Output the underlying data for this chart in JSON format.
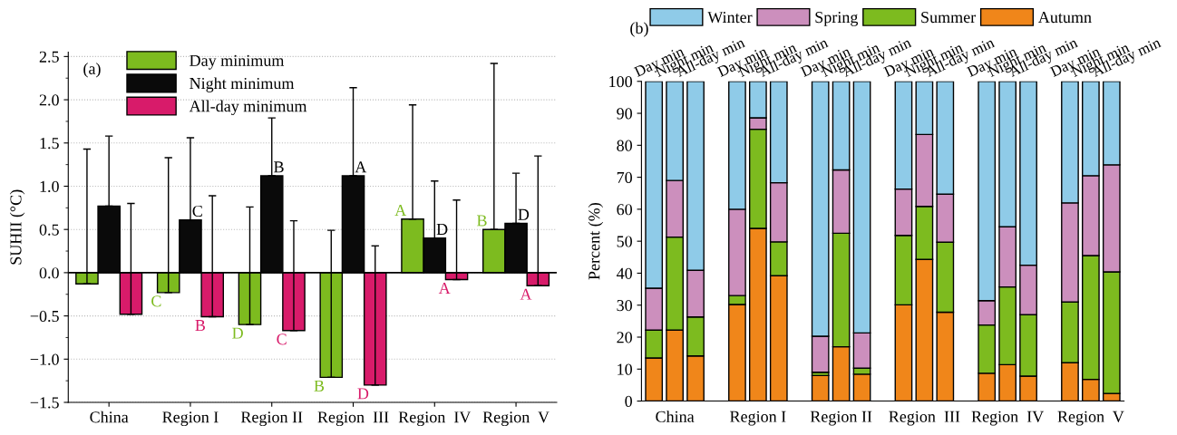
{
  "chart_data": [
    {
      "type": "bar",
      "ylabel": "SUHII (°C)",
      "categories": [
        "China",
        "Region I",
        "Region II",
        "Region  III",
        "Region  IV",
        "Region  V"
      ],
      "ylim": [
        -1.5,
        2.55
      ],
      "yticks": [
        {
          "value": -1.5,
          "label": "−1.5"
        },
        {
          "value": -1.0,
          "label": "−1.0"
        },
        {
          "value": -0.5,
          "label": "−0.5"
        },
        {
          "value": 0.0,
          "label": "0.0"
        },
        {
          "value": 0.5,
          "label": "0.5"
        },
        {
          "value": 1.0,
          "label": "1.0"
        },
        {
          "value": 1.5,
          "label": "1.5"
        },
        {
          "value": 2.0,
          "label": "2.0"
        },
        {
          "value": 2.5,
          "label": "2.5"
        }
      ],
      "grid": "y",
      "legend": "top left",
      "annotations": [
        "(a)"
      ],
      "series": [
        {
          "name": "Day minimum",
          "color": "#7dbb1f",
          "values": [
            -0.13,
            -0.23,
            -0.6,
            -1.21,
            0.62,
            0.5
          ],
          "errors": [
            [
              -0.13,
              1.43
            ],
            [
              -0.23,
              1.33
            ],
            [
              -0.6,
              0.76
            ],
            [
              -1.21,
              0.49
            ],
            [
              0.62,
              1.94
            ],
            [
              0.5,
              2.42
            ]
          ],
          "value_labels": [
            null,
            "C",
            "D",
            "B",
            "A",
            "B"
          ]
        },
        {
          "name": "Night minimum",
          "color": "#0a0a0a",
          "values": [
            0.77,
            0.61,
            1.12,
            1.12,
            0.4,
            0.57
          ],
          "errors": [
            [
              0.77,
              1.58
            ],
            [
              0.61,
              1.56
            ],
            [
              1.12,
              1.79
            ],
            [
              1.12,
              2.14
            ],
            [
              0.4,
              1.06
            ],
            [
              0.57,
              1.15
            ]
          ],
          "value_labels": [
            null,
            "C",
            "B",
            "A",
            "D",
            "D"
          ]
        },
        {
          "name": "All-day minimum",
          "color": "#d81b6a",
          "values": [
            -0.48,
            -0.51,
            -0.67,
            -1.3,
            -0.08,
            -0.15
          ],
          "errors": [
            [
              -0.48,
              0.8
            ],
            [
              -0.51,
              0.89
            ],
            [
              -0.67,
              0.6
            ],
            [
              -1.3,
              0.31
            ],
            [
              -0.08,
              0.84
            ],
            [
              -0.15,
              1.35
            ]
          ],
          "value_labels": [
            null,
            "B",
            "C",
            "D",
            "A",
            "A"
          ]
        }
      ]
    },
    {
      "type": "bar",
      "stacked": true,
      "ylabel": "Percent (%)",
      "ylim": [
        0,
        100
      ],
      "yticks": [
        0,
        10,
        20,
        30,
        40,
        50,
        60,
        70,
        80,
        90,
        100
      ],
      "legend": "top",
      "categories": [
        "Day min",
        "Night min",
        "All-day min",
        null,
        "Day min",
        "Night min",
        "All-day min",
        null,
        "Day min",
        "Night min",
        "All-day min",
        null,
        "Day min",
        "Night min",
        "All-day min",
        null,
        "Day min",
        "Night min",
        "All-day min",
        null,
        "Day min",
        "Night min",
        "All-day min"
      ],
      "annotations": [
        "(b)",
        "China",
        "Region I",
        "Region II",
        "Region  III",
        "Region  IV",
        "Region  V"
      ],
      "series": [
        {
          "name": "Autumn",
          "color": "#f0861a",
          "values": [
            13.5,
            22.2,
            14.1,
            null,
            30.2,
            54.0,
            39.2,
            null,
            8.0,
            17.0,
            8.4,
            null,
            30.1,
            44.3,
            27.8,
            null,
            8.7,
            11.4,
            7.8,
            null,
            12.0,
            6.8,
            2.4
          ]
        },
        {
          "name": "Summer",
          "color": "#7dbb1f",
          "values": [
            8.7,
            29.1,
            12.2,
            null,
            2.8,
            31.0,
            10.6,
            null,
            1.0,
            35.5,
            1.9,
            null,
            21.7,
            16.6,
            21.9,
            null,
            15.1,
            24.3,
            19.2,
            null,
            19.0,
            38.7,
            38.0
          ]
        },
        {
          "name": "Spring",
          "color": "#cc8fbd",
          "values": [
            13.1,
            17.7,
            14.6,
            null,
            27.0,
            3.6,
            18.5,
            null,
            11.3,
            19.8,
            11.0,
            null,
            14.5,
            22.5,
            15.0,
            null,
            7.6,
            18.8,
            15.5,
            null,
            31.0,
            25.0,
            33.5
          ]
        },
        {
          "name": "Winter",
          "color": "#8fcbe8",
          "values": [
            64.7,
            31.0,
            59.1,
            null,
            40.0,
            11.4,
            31.7,
            null,
            79.7,
            27.7,
            78.7,
            null,
            33.7,
            16.6,
            35.3,
            null,
            68.6,
            45.5,
            57.5,
            null,
            38.0,
            29.5,
            26.1
          ]
        }
      ]
    }
  ]
}
